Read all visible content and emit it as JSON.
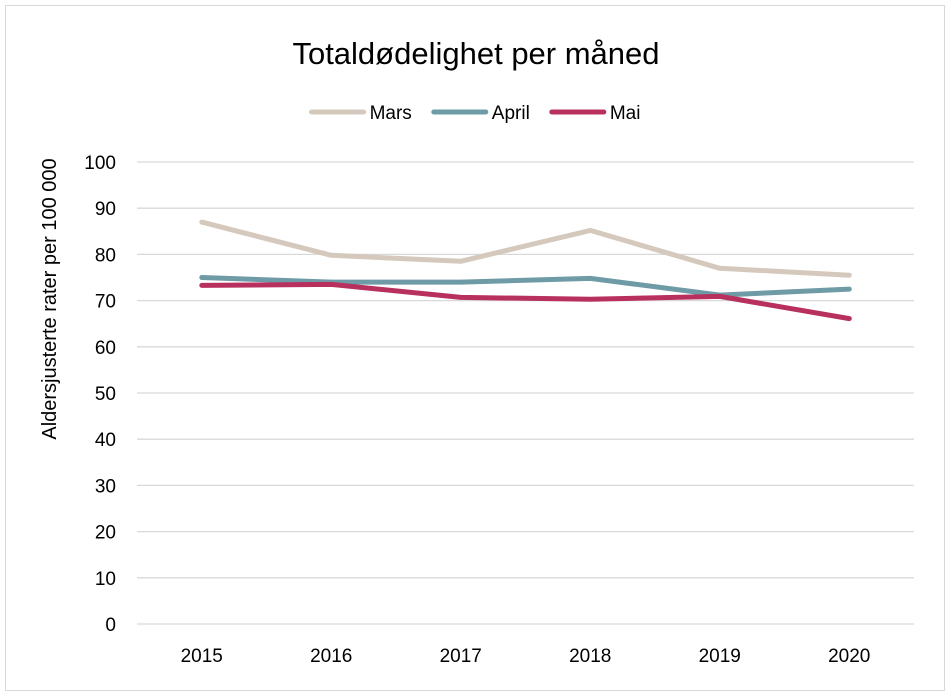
{
  "chart_data": {
    "type": "line",
    "title": "Totaldødelighet per måned",
    "xlabel": "",
    "ylabel": "Aldersjusterte rater per 100 000",
    "categories": [
      "2015",
      "2016",
      "2017",
      "2018",
      "2019",
      "2020"
    ],
    "ylim": [
      0,
      100
    ],
    "yticks": [
      0,
      10,
      20,
      30,
      40,
      50,
      60,
      70,
      80,
      90,
      100
    ],
    "grid": true,
    "legend_position": "top",
    "series": [
      {
        "name": "Mars",
        "color": "#d5c8bc",
        "values": [
          87.0,
          79.8,
          78.5,
          85.2,
          77.0,
          75.5
        ]
      },
      {
        "name": "April",
        "color": "#6e9ba6",
        "values": [
          75.0,
          74.0,
          74.0,
          74.8,
          71.2,
          72.5
        ]
      },
      {
        "name": "Mai",
        "color": "#b8305e",
        "values": [
          73.3,
          73.5,
          70.7,
          70.3,
          70.9,
          66.1
        ]
      }
    ]
  },
  "colors": {
    "gridline": "#d9d9d9",
    "frame": "#d9d9d9"
  }
}
